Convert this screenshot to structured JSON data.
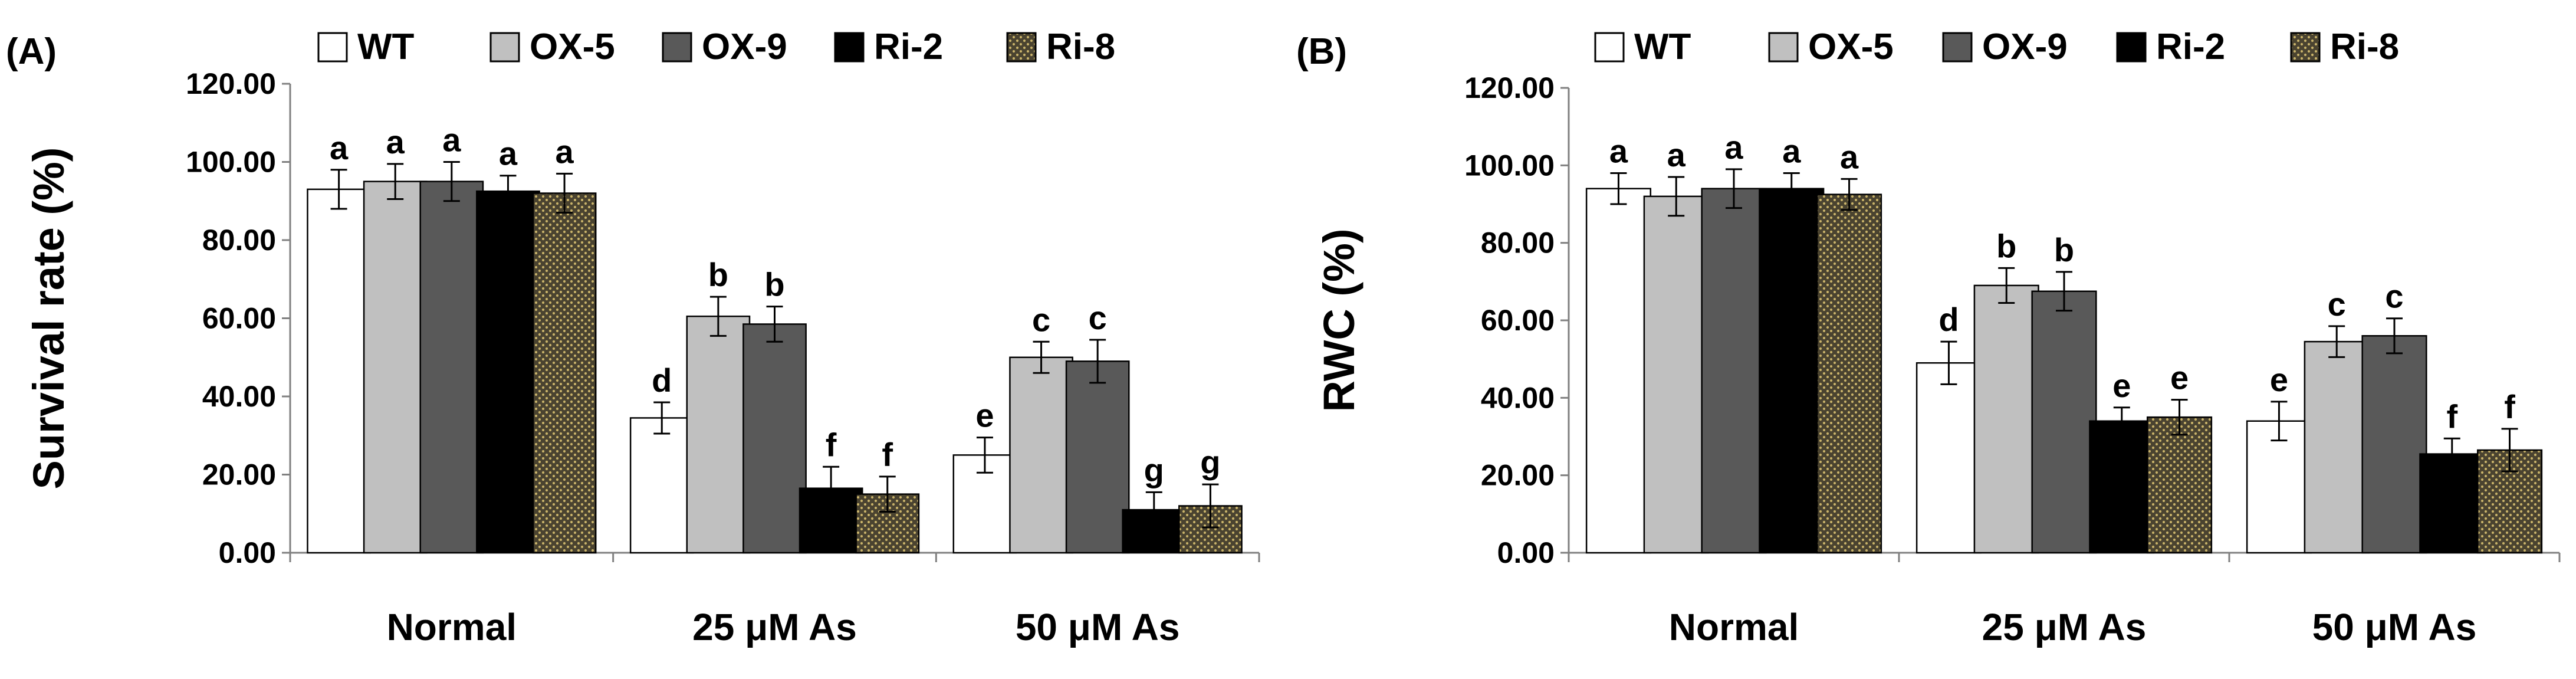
{
  "colors": {
    "axis": "#808080",
    "text": "#000000",
    "WT": "#ffffff",
    "OX-5": "#c0c0c0",
    "OX-9": "#595959",
    "Ri-2": "#000000",
    "Ri-8": "#4a4330",
    "Ri-8-dots": "#c9b36a"
  },
  "chart_data": [
    {
      "panel_label": "(A)",
      "type": "bar",
      "ylabel": "Survival rate (%)",
      "ylim": [
        0,
        120
      ],
      "yticks": [
        "0.00",
        "20.00",
        "40.00",
        "60.00",
        "80.00",
        "100.00",
        "120.00"
      ],
      "categories": [
        "Normal",
        "25 μM As",
        "50 μM As"
      ],
      "legend": [
        "WT",
        "OX-5",
        "OX-9",
        "Ri-2",
        "Ri-8"
      ],
      "legend_position": "top",
      "grid": false,
      "series": [
        {
          "name": "WT",
          "values": [
            93,
            34.5,
            25
          ],
          "errors": [
            5,
            4,
            4.5
          ],
          "letters": [
            "a",
            "d",
            "e"
          ]
        },
        {
          "name": "OX-5",
          "values": [
            95,
            60.5,
            50
          ],
          "errors": [
            4.5,
            5,
            4
          ],
          "letters": [
            "a",
            "b",
            "c"
          ]
        },
        {
          "name": "OX-9",
          "values": [
            95,
            58.5,
            49
          ],
          "errors": [
            5,
            4.5,
            5.5
          ],
          "letters": [
            "a",
            "b",
            "c"
          ]
        },
        {
          "name": "Ri-2",
          "values": [
            92.5,
            16.5,
            11
          ],
          "errors": [
            4,
            5.5,
            4.5
          ],
          "letters": [
            "a",
            "f",
            "g"
          ]
        },
        {
          "name": "Ri-8",
          "values": [
            92,
            15,
            12
          ],
          "errors": [
            5,
            4.5,
            5.5
          ],
          "letters": [
            "a",
            "f",
            "g"
          ]
        }
      ]
    },
    {
      "panel_label": "(B)",
      "type": "bar",
      "ylabel": "RWC (%)",
      "ylim": [
        0,
        120
      ],
      "yticks": [
        "0.00",
        "20.00",
        "40.00",
        "60.00",
        "80.00",
        "100.00",
        "120.00"
      ],
      "categories": [
        "Normal",
        "25 μM As",
        "50 μM As"
      ],
      "legend": [
        "WT",
        "OX-5",
        "OX-9",
        "Ri-2",
        "Ri-8"
      ],
      "legend_position": "top",
      "grid": false,
      "series": [
        {
          "name": "WT",
          "values": [
            94,
            49,
            34
          ],
          "errors": [
            4,
            5.5,
            5
          ],
          "letters": [
            "a",
            "d",
            "e"
          ]
        },
        {
          "name": "OX-5",
          "values": [
            92,
            69,
            54.5
          ],
          "errors": [
            5,
            4.5,
            4
          ],
          "letters": [
            "a",
            "b",
            "c"
          ]
        },
        {
          "name": "OX-9",
          "values": [
            94,
            67.5,
            56
          ],
          "errors": [
            5,
            5,
            4.5
          ],
          "letters": [
            "a",
            "b",
            "c"
          ]
        },
        {
          "name": "Ri-2",
          "values": [
            94,
            34,
            25.5
          ],
          "errors": [
            4,
            3.5,
            4
          ],
          "letters": [
            "a",
            "e",
            "f"
          ]
        },
        {
          "name": "Ri-8",
          "values": [
            92.5,
            35,
            26.5
          ],
          "errors": [
            4,
            4.5,
            5.5
          ],
          "letters": [
            "a",
            "e",
            "f"
          ]
        }
      ]
    }
  ]
}
